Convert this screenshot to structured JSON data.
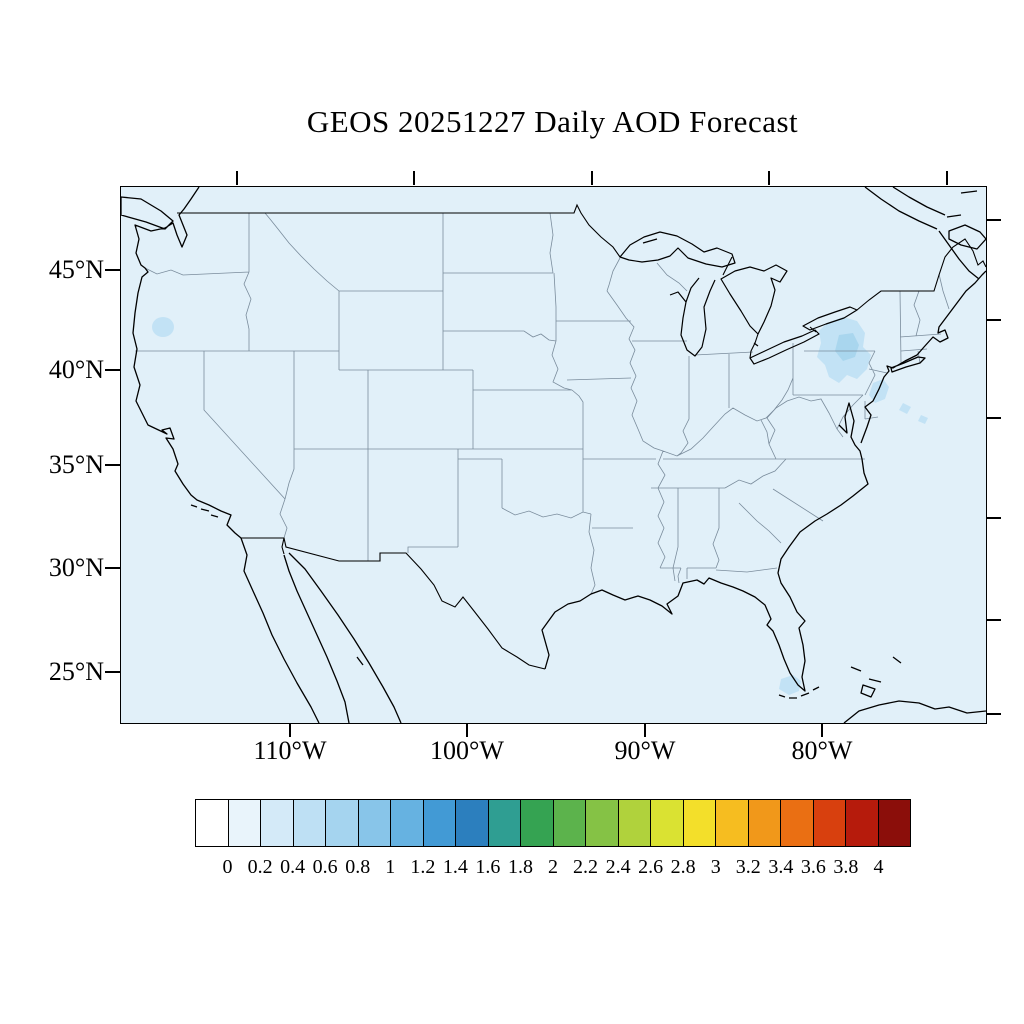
{
  "title": "GEOS 20251227 Daily AOD Forecast",
  "map": {
    "region": "Continental United States",
    "background_color": "#E1F0F9",
    "coastline_color": "#000000",
    "international_border_color": "#000000",
    "state_border_color": "#7A8C9C",
    "aod_patch_color": "#C2E2F5",
    "aod_patch_core_color": "#A9D6EE",
    "frame_color": "#000000"
  },
  "axes": {
    "lat_tick_labels": [
      "45°N",
      "40°N",
      "35°N",
      "30°N",
      "25°N"
    ],
    "lon_tick_labels": [
      "110°W",
      "100°W",
      "90°W",
      "80°W"
    ]
  },
  "colorbar": {
    "tick_labels": [
      "0",
      "0.2",
      "0.4",
      "0.6",
      "0.8",
      "1",
      "1.2",
      "1.4",
      "1.6",
      "1.8",
      "2",
      "2.2",
      "2.4",
      "2.6",
      "2.8",
      "3",
      "3.2",
      "3.4",
      "3.6",
      "3.8",
      "4"
    ],
    "colors": [
      "#FFFFFF",
      "#E9F4FB",
      "#D4EAF8",
      "#BEE0F4",
      "#A5D4EF",
      "#88C5E9",
      "#66B2E1",
      "#429AD5",
      "#2C7FBE",
      "#2F9E92",
      "#35A352",
      "#5CB34C",
      "#85C245",
      "#B0D23C",
      "#DAE232",
      "#F3DF2A",
      "#F6BD20",
      "#F1981A",
      "#EA6F13",
      "#D8400E",
      "#B61B0C",
      "#8B0E0A"
    ],
    "label_color": "#000000"
  },
  "chart_data": {
    "type": "heatmap",
    "title": "GEOS 20251227 Daily AOD Forecast",
    "variable": "AOD",
    "date": "20251227",
    "model": "GEOS",
    "colorbar_levels": [
      0,
      0.2,
      0.4,
      0.6,
      0.8,
      1,
      1.2,
      1.4,
      1.6,
      1.8,
      2,
      2.2,
      2.4,
      2.6,
      2.8,
      3,
      3.2,
      3.4,
      3.6,
      3.8,
      4
    ],
    "lat_ticks": [
      45,
      40,
      35,
      30,
      25
    ],
    "lon_ticks": [
      110,
      100,
      90,
      80
    ],
    "grid": false,
    "legend_position": "bottom",
    "field_summary": [
      {
        "region": "Most of CONUS and adjacent ocean",
        "aod": "0.0-0.2"
      },
      {
        "region": "Central New York / northeast Pennsylvania / New Jersey",
        "aod": "0.2-0.4"
      },
      {
        "region": "Coastal New Jersey offshore waters",
        "aod": "0.2-0.4"
      },
      {
        "region": "Southern Florida tip",
        "aod": "0.2-0.4"
      },
      {
        "region": "Oregon coast",
        "aod": "0.2-0.4"
      }
    ]
  }
}
